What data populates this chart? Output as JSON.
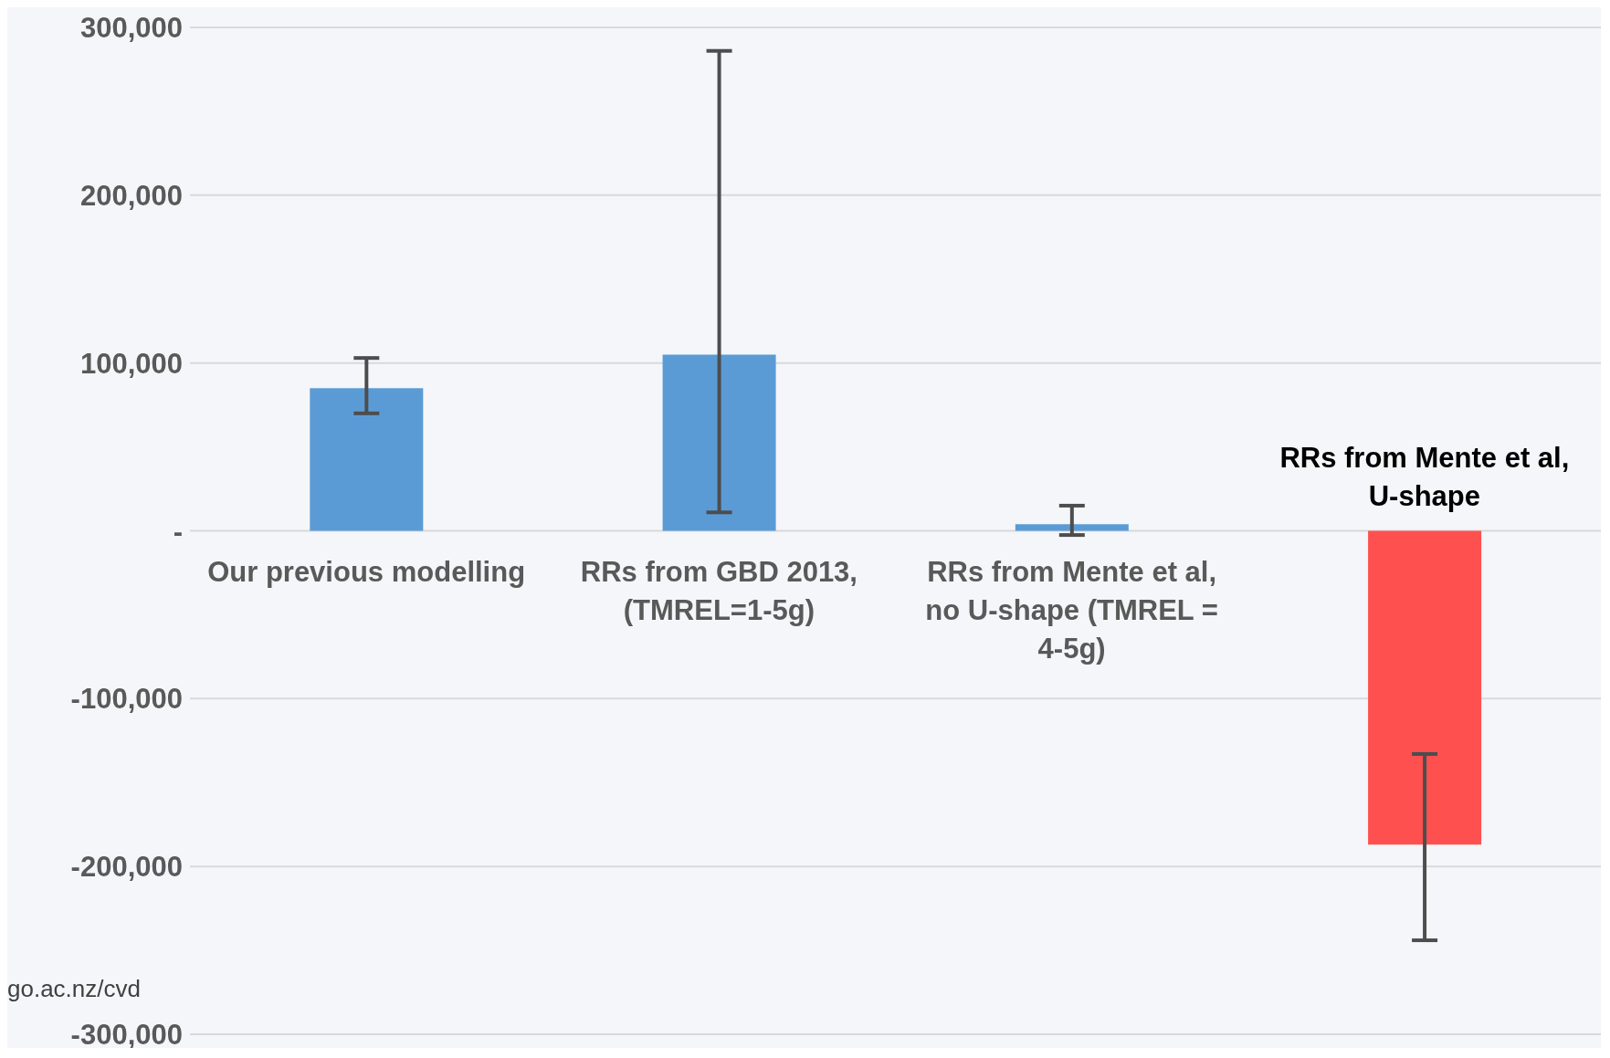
{
  "chart_data": {
    "type": "bar",
    "categories": [
      "Our previous modelling",
      "RRs from GBD 2013, (TMREL=1-5g)",
      "RRs from Mente et al, no U-shape (TMREL = 4-5g)",
      "RRs from Mente et al, U-shape"
    ],
    "values": [
      85000,
      105000,
      4000,
      -187000
    ],
    "colors": [
      "#5b9bd5",
      "#5b9bd5",
      "#5b9bd5",
      "#ff5050"
    ],
    "errors": [
      [
        70000,
        103000
      ],
      [
        11000,
        286000
      ],
      [
        -2500,
        15000
      ],
      [
        -244000,
        -133000
      ]
    ],
    "ylim": [
      -300000,
      300000
    ],
    "yticks": [
      {
        "value": -300000,
        "label": "-300,000"
      },
      {
        "value": -200000,
        "label": "-200,000"
      },
      {
        "value": -100000,
        "label": "-100,000"
      },
      {
        "value": 0,
        "label": "-"
      },
      {
        "value": 100000,
        "label": "100,000"
      },
      {
        "value": 200000,
        "label": "200,000"
      },
      {
        "value": 300000,
        "label": "300,000"
      }
    ],
    "grid": "y",
    "annotations": [
      "go.ac.nz/cvd"
    ]
  }
}
